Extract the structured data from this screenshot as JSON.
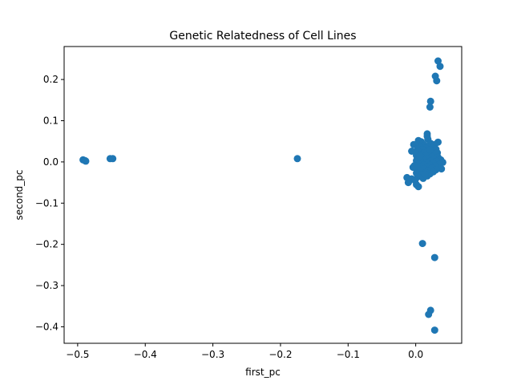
{
  "chart_data": {
    "type": "scatter",
    "title": "Genetic Relatedness of Cell Lines",
    "xlabel": "first_pc",
    "ylabel": "second_pc",
    "xlim": [
      -0.52,
      0.068
    ],
    "ylim": [
      -0.44,
      0.28
    ],
    "xticks": [
      -0.5,
      -0.4,
      -0.3,
      -0.2,
      -0.1,
      0.0
    ],
    "xtick_labels": [
      "−0.5",
      "−0.4",
      "−0.3",
      "−0.2",
      "−0.1",
      "0.0"
    ],
    "yticks": [
      -0.4,
      -0.3,
      -0.2,
      -0.1,
      0.0,
      0.1,
      0.2
    ],
    "ytick_labels": [
      "−0.4",
      "−0.3",
      "−0.2",
      "−0.1",
      "0.0",
      "0.1",
      "0.2"
    ],
    "grid": false,
    "legend": "none",
    "marker_color": "#1f77b4",
    "points": [
      [
        -0.492,
        0.005
      ],
      [
        -0.489,
        0.003
      ],
      [
        -0.488,
        0.002
      ],
      [
        -0.452,
        0.008
      ],
      [
        -0.448,
        0.008
      ],
      [
        -0.175,
        0.008
      ],
      [
        0.033,
        0.245
      ],
      [
        0.036,
        0.232
      ],
      [
        0.029,
        0.208
      ],
      [
        0.031,
        0.197
      ],
      [
        0.022,
        0.147
      ],
      [
        0.021,
        0.133
      ],
      [
        0.017,
        0.068
      ],
      [
        0.017,
        0.062
      ],
      [
        0.018,
        0.055
      ],
      [
        0.004,
        0.052
      ],
      [
        0.008,
        0.049
      ],
      [
        0.033,
        0.048
      ],
      [
        -0.003,
        0.042
      ],
      [
        0.01,
        0.044
      ],
      [
        0.022,
        0.045
      ],
      [
        0.028,
        0.042
      ],
      [
        0.013,
        0.04
      ],
      [
        0.006,
        0.038
      ],
      [
        0.019,
        0.036
      ],
      [
        0.025,
        0.035
      ],
      [
        0.003,
        0.032
      ],
      [
        0.015,
        0.033
      ],
      [
        0.03,
        0.031
      ],
      [
        0.01,
        0.03
      ],
      [
        -0.006,
        0.026
      ],
      [
        0.004,
        0.025
      ],
      [
        0.018,
        0.027
      ],
      [
        0.025,
        0.024
      ],
      [
        0.032,
        0.022
      ],
      [
        0.012,
        0.022
      ],
      [
        0.007,
        0.018
      ],
      [
        0.02,
        0.019
      ],
      [
        0.028,
        0.016
      ],
      [
        0.001,
        0.016
      ],
      [
        0.015,
        0.015
      ],
      [
        0.024,
        0.012
      ],
      [
        0.009,
        0.011
      ],
      [
        0.033,
        0.011
      ],
      [
        0.004,
        0.008
      ],
      [
        0.018,
        0.008
      ],
      [
        0.027,
        0.006
      ],
      [
        0.037,
        0.005
      ],
      [
        0.012,
        0.005
      ],
      [
        0.001,
        0.003
      ],
      [
        0.022,
        0.002
      ],
      [
        0.031,
        0.001
      ],
      [
        0.04,
        -0.001
      ],
      [
        0.008,
        0.0
      ],
      [
        0.016,
        -0.002
      ],
      [
        0.026,
        -0.004
      ],
      [
        0.004,
        -0.005
      ],
      [
        0.035,
        -0.006
      ],
      [
        0.012,
        -0.007
      ],
      [
        0.021,
        -0.008
      ],
      [
        -0.002,
        -0.009
      ],
      [
        0.029,
        -0.01
      ],
      [
        0.008,
        -0.011
      ],
      [
        0.017,
        -0.012
      ],
      [
        0.038,
        -0.017
      ],
      [
        -0.004,
        -0.013
      ],
      [
        0.024,
        -0.015
      ],
      [
        0.003,
        -0.016
      ],
      [
        0.013,
        -0.017
      ],
      [
        0.03,
        -0.019
      ],
      [
        0.019,
        -0.021
      ],
      [
        0.007,
        -0.022
      ],
      [
        0.026,
        -0.024
      ],
      [
        0.015,
        -0.026
      ],
      [
        0.001,
        -0.027
      ],
      [
        0.021,
        -0.029
      ],
      [
        0.009,
        -0.031
      ],
      [
        0.017,
        -0.034
      ],
      [
        0.003,
        -0.036
      ],
      [
        -0.013,
        -0.038
      ],
      [
        -0.006,
        -0.041
      ],
      [
        0.011,
        -0.04
      ],
      [
        -0.01,
        -0.047
      ],
      [
        -0.011,
        -0.05
      ],
      [
        0.001,
        -0.055
      ],
      [
        0.004,
        -0.06
      ],
      [
        -0.001,
        -0.045
      ],
      [
        0.014,
        -0.03
      ],
      [
        0.021,
        0.03
      ],
      [
        0.006,
        0.014
      ],
      [
        0.01,
        -0.198
      ],
      [
        0.028,
        -0.232
      ],
      [
        0.022,
        -0.36
      ],
      [
        0.019,
        -0.37
      ],
      [
        0.028,
        -0.408
      ]
    ]
  }
}
